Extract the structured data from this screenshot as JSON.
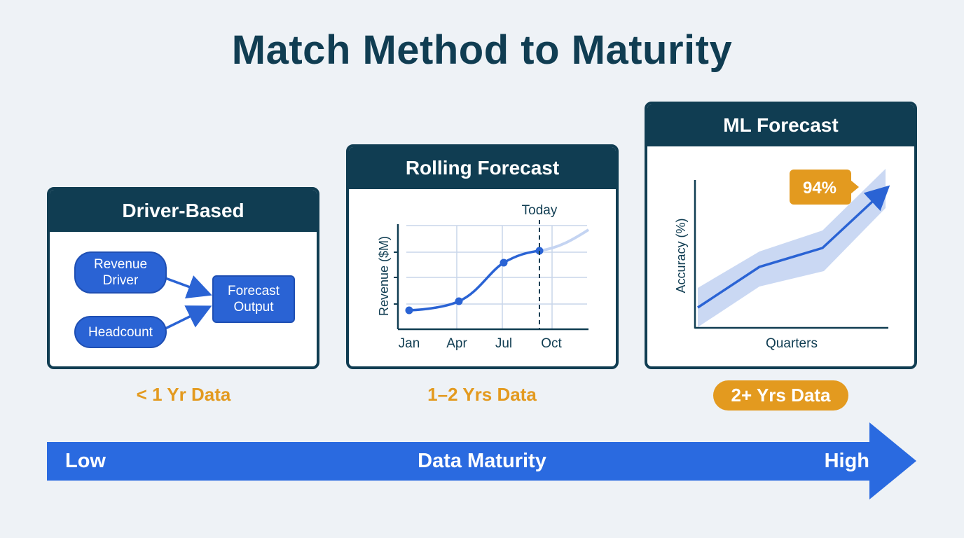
{
  "title": "Match Method to Maturity",
  "cards": [
    {
      "title": "Driver-Based",
      "nodes": {
        "revenue_driver": "Revenue\nDriver",
        "headcount": "Headcount",
        "forecast_output": "Forecast\nOutput"
      },
      "data_label": "< 1 Yr Data"
    },
    {
      "title": "Rolling Forecast",
      "today_label": "Today",
      "y_axis_label": "Revenue ($M)",
      "x_ticks": [
        "Jan",
        "Apr",
        "Jul",
        "Oct"
      ],
      "data_label": "1–2 Yrs Data"
    },
    {
      "title": "ML Forecast",
      "callout": "94%",
      "y_axis_label": "Accuracy (%)",
      "x_axis_label": "Quarters",
      "data_label": "2+ Yrs Data"
    }
  ],
  "maturity_axis": {
    "low": "Low",
    "label": "Data Maturity",
    "high": "High"
  },
  "colors": {
    "navy": "#103d52",
    "blue": "#2a63d4",
    "light_blue": "#c4d4f2",
    "orange": "#e39a1f",
    "background": "#eef2f6"
  }
}
